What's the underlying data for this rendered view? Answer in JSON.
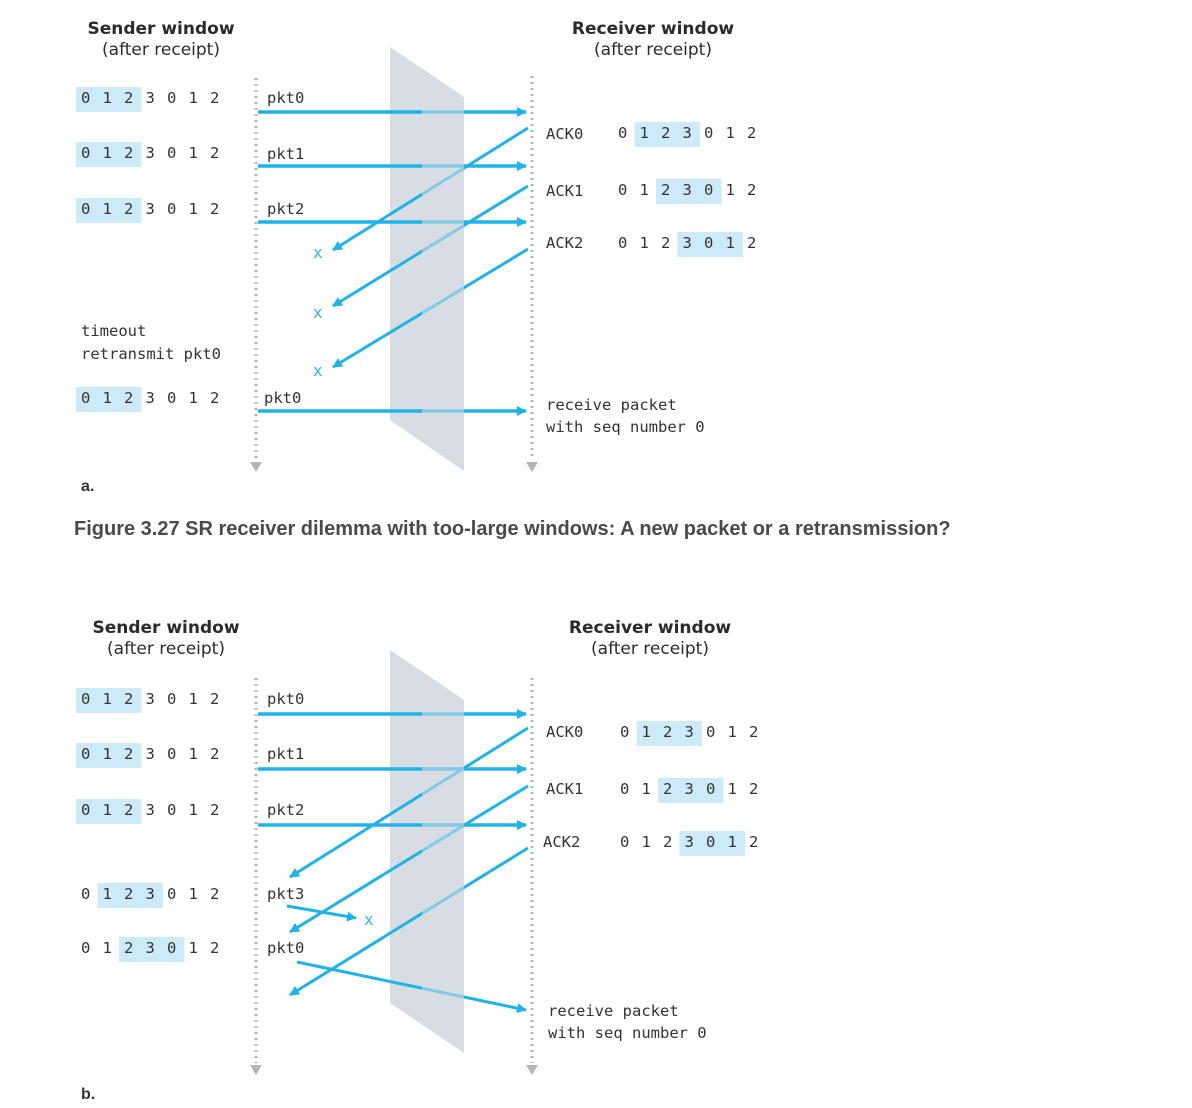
{
  "caption": "Figure 3.27 SR receiver dilemma with too-large windows: A new packet or a retransmission?",
  "colors": {
    "arrow": "#1eb4ea",
    "window_highlight": "#cdeaf8",
    "channel": "#d7dde3",
    "timeline": "#b5b5b5",
    "lost_mark": "#29b6e8"
  },
  "seq_numbers": [
    "0",
    "1",
    "2",
    "3",
    "0",
    "1",
    "2"
  ],
  "panel_a": {
    "label": "a.",
    "sender_title": "Sender window",
    "sender_subtitle": "(after receipt)",
    "receiver_title": "Receiver window",
    "receiver_subtitle": "(after receipt)",
    "sender_windows": [
      {
        "highlight": [
          0,
          1,
          2
        ]
      },
      {
        "highlight": [
          0,
          1,
          2
        ]
      },
      {
        "highlight": [
          0,
          1,
          2
        ]
      },
      {
        "highlight": [
          0,
          1,
          2
        ]
      }
    ],
    "packets": [
      "pkt0",
      "pkt1",
      "pkt2",
      "pkt0"
    ],
    "acks": [
      "ACK0",
      "ACK1",
      "ACK2"
    ],
    "receiver_windows": [
      {
        "highlight": [
          1,
          2,
          3
        ]
      },
      {
        "highlight": [
          2,
          3,
          4
        ]
      },
      {
        "highlight": [
          3,
          4,
          5
        ]
      }
    ],
    "timeout_label": "timeout",
    "retransmit_label": "retransmit pkt0",
    "lost_mark": "x",
    "receive_line1": "receive packet",
    "receive_line2": "with seq number 0"
  },
  "panel_b": {
    "label": "b.",
    "sender_title": "Sender window",
    "sender_subtitle": "(after receipt)",
    "receiver_title": "Receiver window",
    "receiver_subtitle": "(after receipt)",
    "sender_windows": [
      {
        "highlight": [
          0,
          1,
          2
        ]
      },
      {
        "highlight": [
          0,
          1,
          2
        ]
      },
      {
        "highlight": [
          0,
          1,
          2
        ]
      },
      {
        "highlight": [
          1,
          2,
          3
        ]
      },
      {
        "highlight": [
          2,
          3,
          4
        ]
      }
    ],
    "packets": [
      "pkt0",
      "pkt1",
      "pkt2",
      "pkt3",
      "pkt0"
    ],
    "acks": [
      "ACK0",
      "ACK1",
      "ACK2"
    ],
    "receiver_windows": [
      {
        "highlight": [
          1,
          2,
          3
        ]
      },
      {
        "highlight": [
          2,
          3,
          4
        ]
      },
      {
        "highlight": [
          3,
          4,
          5
        ]
      }
    ],
    "lost_mark": "x",
    "receive_line1": "receive packet",
    "receive_line2": "with seq number 0"
  }
}
